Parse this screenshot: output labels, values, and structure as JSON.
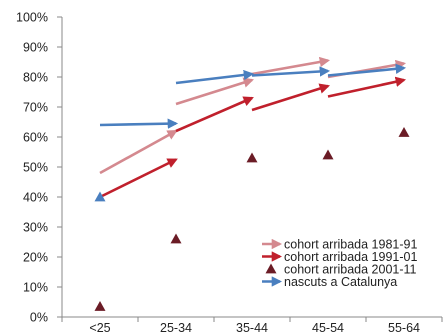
{
  "chart_data": {
    "type": "line",
    "title": "",
    "xlabel": "",
    "ylabel": "",
    "categories": [
      "<25",
      "25-34",
      "35-44",
      "45-54",
      "55-64"
    ],
    "ylim": [
      0,
      100
    ],
    "yticks": [
      0,
      10,
      20,
      30,
      40,
      50,
      60,
      70,
      80,
      90,
      100
    ],
    "ytick_labels": [
      "0%",
      "10%",
      "20%",
      "30%",
      "40%",
      "50%",
      "60%",
      "70%",
      "80%",
      "90%",
      "100%"
    ],
    "grid": false,
    "legend_position": "bottom-right",
    "series": [
      {
        "name": "cohort arribada 1981-91",
        "color": "#d4898f",
        "marker": "arrow",
        "segments": [
          {
            "from": [
              "<25",
              48
            ],
            "to": [
              "25-34",
              62
            ]
          },
          {
            "from": [
              "25-34",
              71
            ],
            "to": [
              "35-44",
              79
            ]
          },
          {
            "from": [
              "35-44",
              81
            ],
            "to": [
              "45-54",
              85.5
            ]
          },
          {
            "from": [
              "45-54",
              80
            ],
            "to": [
              "55-64",
              84.5
            ]
          }
        ]
      },
      {
        "name": "cohort arribada 1991-01",
        "color": "#c0202c",
        "marker": "arrow",
        "segments": [
          {
            "from": [
              "<25",
              40
            ],
            "to": [
              "25-34",
              52.5
            ]
          },
          {
            "from": [
              "25-34",
              62
            ],
            "to": [
              "35-44",
              73
            ]
          },
          {
            "from": [
              "35-44",
              69
            ],
            "to": [
              "45-54",
              77
            ]
          },
          {
            "from": [
              "45-54",
              73.5
            ],
            "to": [
              "55-64",
              79
            ]
          }
        ]
      },
      {
        "name": "cohort arribada 2001-11",
        "color": "#6b1c26",
        "marker": "triangle",
        "points": [
          [
            "<25",
            3.5
          ],
          [
            "25-34",
            26
          ],
          [
            "35-44",
            53
          ],
          [
            "45-54",
            54
          ],
          [
            "55-64",
            61.5
          ]
        ]
      },
      {
        "name": "nascuts a Catalunya",
        "color": "#4a7fbf",
        "marker": "arrow",
        "start_triangle": [
          "<25",
          40
        ],
        "segments": [
          {
            "from": [
              "<25",
              64
            ],
            "to": [
              "25-34",
              64.5
            ]
          },
          {
            "from": [
              "25-34",
              78
            ],
            "to": [
              "35-44",
              81
            ]
          },
          {
            "from": [
              "35-44",
              80.5
            ],
            "to": [
              "45-54",
              82
            ]
          },
          {
            "from": [
              "45-54",
              80.5
            ],
            "to": [
              "55-64",
              83
            ]
          }
        ]
      }
    ]
  }
}
